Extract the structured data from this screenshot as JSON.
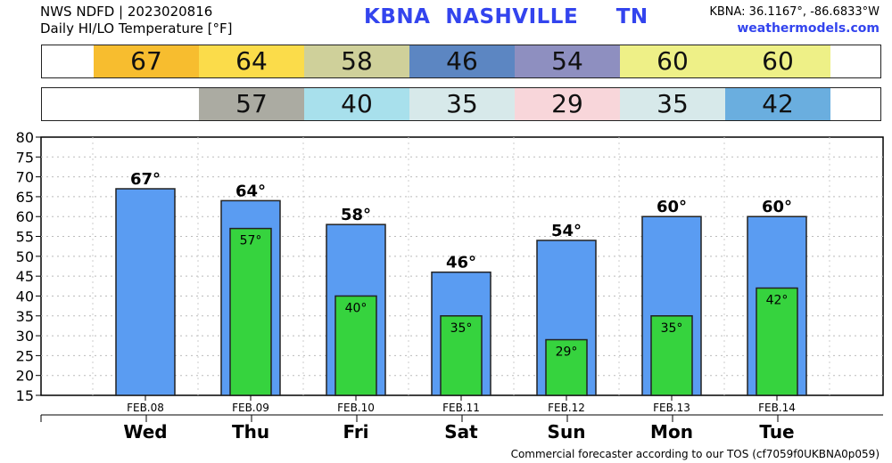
{
  "header": {
    "line1": "NWS NDFD | 2023020816",
    "line2": "Daily HI/LO Temperature [°F]",
    "station": "KBNA  NASHVILLE     TN",
    "coords": "KBNA: 36.1167°, -86.6833°W",
    "site": "weathermodels.com"
  },
  "footer": "Commercial forecaster according to our TOS (cf7059f0UKBNA0p059)",
  "colors": {
    "hi_bar": "#5a9cf2",
    "lo_bar": "#36d33e",
    "hi_strip": [
      "#f7bd2f",
      "#fbdc4a",
      "#cfd09a",
      "#5c86c2",
      "#8e8fc0",
      "#eef087",
      "#eef087"
    ],
    "lo_strip": [
      "#ababa2",
      "#a8e0ec",
      "#d7e9ea",
      "#f8d6da",
      "#d7e9ea",
      "#6aaedf"
    ]
  },
  "hi_strip": [
    "67",
    "64",
    "58",
    "46",
    "54",
    "60",
    "60"
  ],
  "lo_strip": [
    "57",
    "40",
    "35",
    "29",
    "35",
    "42"
  ],
  "chart_data": {
    "type": "bar",
    "categories": [
      "FEB.08",
      "FEB.09",
      "FEB.10",
      "FEB.11",
      "FEB.12",
      "FEB.13",
      "FEB.14"
    ],
    "days": [
      "Wed",
      "Thu",
      "Fri",
      "Sat",
      "Sun",
      "Mon",
      "Tue"
    ],
    "series": [
      {
        "values": [
          67,
          64,
          58,
          46,
          54,
          60,
          60
        ],
        "labels": [
          "67°",
          "64°",
          "58°",
          "46°",
          "54°",
          "60°",
          "60°"
        ]
      },
      {
        "values": [
          null,
          57,
          40,
          35,
          29,
          35,
          42
        ],
        "labels": [
          null,
          "57°",
          "40°",
          "35°",
          "29°",
          "35°",
          "42°"
        ]
      }
    ],
    "ylim": [
      15,
      80
    ],
    "yticks": [
      "15",
      "20",
      "25",
      "30",
      "35",
      "40",
      "45",
      "50",
      "55",
      "60",
      "65",
      "70",
      "75",
      "80"
    ],
    "grid": true
  }
}
